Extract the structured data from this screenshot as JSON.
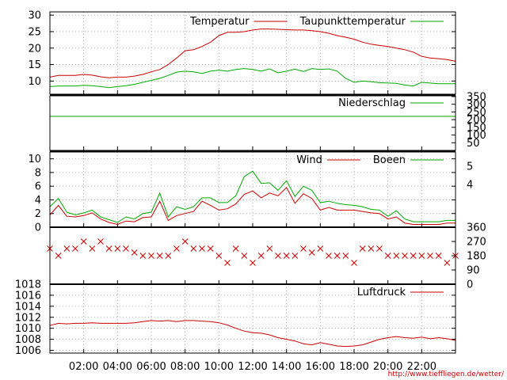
{
  "chart_data": [
    {
      "panel": "temperature",
      "type": "line",
      "ylim": [
        6,
        31
      ],
      "y_ticks": [
        10,
        15,
        20,
        25,
        30
      ],
      "grid": true,
      "legend_position": "top-right",
      "x": [
        0,
        0.5,
        1,
        1.5,
        2,
        2.5,
        3,
        3.5,
        4,
        4.5,
        5,
        5.5,
        6,
        6.5,
        7,
        7.5,
        8,
        8.5,
        9,
        9.5,
        10,
        10.5,
        11,
        11.5,
        12,
        12.5,
        13,
        13.5,
        14,
        14.5,
        15,
        15.5,
        16,
        16.5,
        17,
        17.5,
        18,
        18.5,
        19,
        19.5,
        20,
        20.5,
        21,
        21.5,
        22,
        22.5,
        23,
        23.5,
        24
      ],
      "series": [
        {
          "name": "Temperatur",
          "color": "#cc0000",
          "values": [
            11.2,
            11.7,
            11.7,
            11.7,
            12.0,
            11.8,
            11.3,
            11.0,
            11.2,
            11.2,
            11.5,
            12.0,
            12.8,
            13.5,
            15.0,
            17.0,
            19.2,
            19.5,
            20.5,
            21.8,
            23.8,
            24.8,
            24.8,
            25.0,
            25.5,
            25.8,
            25.8,
            25.7,
            25.6,
            25.5,
            25.5,
            25.3,
            25.0,
            24.5,
            23.8,
            23.3,
            22.7,
            21.8,
            21.2,
            20.8,
            20.5,
            20.0,
            19.5,
            18.8,
            17.5,
            17.0,
            16.8,
            16.5,
            16.0
          ]
        },
        {
          "name": "Taupunkttemperatur",
          "color": "#00aa00",
          "values": [
            8.3,
            8.5,
            8.5,
            8.5,
            8.7,
            8.6,
            8.3,
            8.0,
            8.3,
            8.6,
            9.0,
            9.6,
            10.2,
            10.8,
            11.7,
            12.7,
            13.0,
            12.8,
            12.3,
            13.0,
            13.3,
            13.0,
            13.5,
            13.8,
            13.5,
            13.0,
            13.7,
            12.5,
            13.0,
            13.6,
            12.9,
            13.8,
            13.5,
            13.7,
            13.0,
            10.8,
            9.6,
            10.0,
            9.8,
            9.5,
            9.4,
            9.3,
            8.8,
            8.5,
            9.6,
            9.4,
            9.2,
            9.2,
            9.2
          ]
        }
      ]
    },
    {
      "panel": "precipitation",
      "type": "line",
      "ylim": [
        0,
        355
      ],
      "y_ticks": [
        50,
        100,
        150,
        200,
        250,
        300,
        350
      ],
      "grid": false,
      "legend_position": "top-right",
      "x": [
        0,
        24
      ],
      "series": [
        {
          "name": "Niederschlag",
          "color": "#00aa00",
          "values": [
            221,
            221
          ]
        }
      ]
    },
    {
      "panel": "wind",
      "type": "line",
      "ylim": [
        0,
        11
      ],
      "y_ticks": [
        0,
        2,
        4,
        6,
        8,
        10
      ],
      "right_labels": [
        "5",
        "4"
      ],
      "grid": true,
      "legend_position": "top-right",
      "x": [
        0,
        0.5,
        1,
        1.5,
        2,
        2.5,
        3,
        3.5,
        4,
        4.5,
        5,
        5.5,
        6,
        6.5,
        7,
        7.5,
        8,
        8.5,
        9,
        9.5,
        10,
        10.5,
        11,
        11.5,
        12,
        12.5,
        13,
        13.5,
        14,
        14.5,
        15,
        15.5,
        16,
        16.5,
        17,
        17.5,
        18,
        18.5,
        19,
        19.5,
        20,
        20.5,
        21,
        21.5,
        22,
        22.5,
        23,
        23.5,
        24
      ],
      "series": [
        {
          "name": "Wind",
          "color": "#cc0000",
          "values": [
            1.8,
            3.2,
            1.6,
            1.5,
            1.7,
            2.1,
            1.2,
            0.7,
            0.4,
            0.9,
            0.8,
            1.4,
            1.5,
            3.8,
            1.0,
            1.7,
            2.0,
            2.3,
            3.8,
            3.2,
            2.5,
            2.7,
            3.4,
            4.8,
            5.3,
            4.3,
            5.0,
            4.6,
            5.8,
            3.5,
            4.9,
            4.2,
            2.5,
            2.9,
            2.5,
            2.5,
            2.5,
            2.3,
            2.1,
            2.0,
            1.2,
            1.5,
            0.6,
            0.4,
            0.4,
            0.4,
            0.4,
            0.6,
            0.6
          ]
        },
        {
          "name": "Boeen",
          "color": "#00aa00",
          "values": [
            3.0,
            4.2,
            2.2,
            1.8,
            2.1,
            2.5,
            1.5,
            1.1,
            0.7,
            1.5,
            1.2,
            2.0,
            2.2,
            5.0,
            1.5,
            3.0,
            2.6,
            3.0,
            4.3,
            4.3,
            3.6,
            3.6,
            4.6,
            7.4,
            8.2,
            6.4,
            6.5,
            5.4,
            6.8,
            4.5,
            6.0,
            5.4,
            3.6,
            3.8,
            3.5,
            3.3,
            3.2,
            3.0,
            2.6,
            2.5,
            1.6,
            2.4,
            1.2,
            0.8,
            0.8,
            0.8,
            0.8,
            1.0,
            1.0
          ]
        }
      ]
    },
    {
      "panel": "wind_direction",
      "type": "scatter",
      "ylim": [
        0,
        360
      ],
      "y_ticks": [
        0,
        90,
        180,
        270,
        360
      ],
      "marker": "x",
      "color": "#cc0000",
      "grid": false,
      "x": [
        0,
        0.5,
        1,
        1.5,
        2,
        2.5,
        3,
        3.5,
        4,
        4.5,
        5,
        5.5,
        6,
        6.5,
        7,
        7.5,
        8,
        8.5,
        9,
        9.5,
        10,
        10.5,
        11,
        11.5,
        12,
        12.5,
        13,
        13.5,
        14,
        14.5,
        15,
        15.5,
        16,
        16.5,
        17,
        17.5,
        18,
        18.5,
        19,
        19.5,
        20,
        20.5,
        21,
        21.5,
        22,
        22.5,
        23,
        23.5,
        24
      ],
      "values": [
        225,
        180,
        225,
        225,
        270,
        225,
        270,
        225,
        225,
        225,
        200,
        180,
        180,
        180,
        180,
        225,
        270,
        225,
        225,
        225,
        180,
        135,
        225,
        180,
        135,
        180,
        225,
        180,
        180,
        180,
        225,
        200,
        225,
        180,
        180,
        180,
        135,
        225,
        225,
        225,
        180,
        180,
        180,
        180,
        180,
        180,
        180,
        135,
        180
      ]
    },
    {
      "panel": "pressure",
      "type": "line",
      "ylim": [
        1005.5,
        1018
      ],
      "y_ticks": [
        1006,
        1008,
        1010,
        1012,
        1014,
        1016,
        1018
      ],
      "grid": true,
      "legend_position": "top-right",
      "x": [
        0,
        0.5,
        1,
        1.5,
        2,
        2.5,
        3,
        3.5,
        4,
        4.5,
        5,
        5.5,
        6,
        6.5,
        7,
        7.5,
        8,
        8.5,
        9,
        9.5,
        10,
        10.5,
        11,
        11.5,
        12,
        12.5,
        13,
        13.5,
        14,
        14.5,
        15,
        15.5,
        16,
        16.5,
        17,
        17.5,
        18,
        18.5,
        19,
        19.5,
        20,
        20.5,
        21,
        21.5,
        22,
        22.5,
        23,
        23.5,
        24
      ],
      "series": [
        {
          "name": "Luftdruck",
          "color": "#cc0000",
          "values": [
            1010.5,
            1010.9,
            1010.8,
            1010.9,
            1010.9,
            1011.0,
            1010.9,
            1010.9,
            1010.9,
            1010.9,
            1011.0,
            1011.2,
            1011.4,
            1011.3,
            1011.4,
            1011.2,
            1011.4,
            1011.4,
            1011.3,
            1011.2,
            1011.0,
            1010.6,
            1010.0,
            1009.5,
            1009.2,
            1009.1,
            1008.8,
            1008.3,
            1008.0,
            1007.7,
            1007.2,
            1007.0,
            1007.4,
            1007.1,
            1006.8,
            1006.7,
            1006.8,
            1007.0,
            1007.5,
            1008.0,
            1008.3,
            1008.5,
            1008.3,
            1008.2,
            1008.4,
            1008.1,
            1008.3,
            1008.1,
            1007.8
          ]
        }
      ]
    }
  ],
  "x_axis": {
    "tick_labels": [
      "02:00",
      "04:00",
      "06:00",
      "08:00",
      "10:00",
      "12:00",
      "14:00",
      "16:00",
      "18:00",
      "20:00",
      "22:00"
    ]
  },
  "footer_url": "http://www.tiefflieg en.de/wetter/"
}
